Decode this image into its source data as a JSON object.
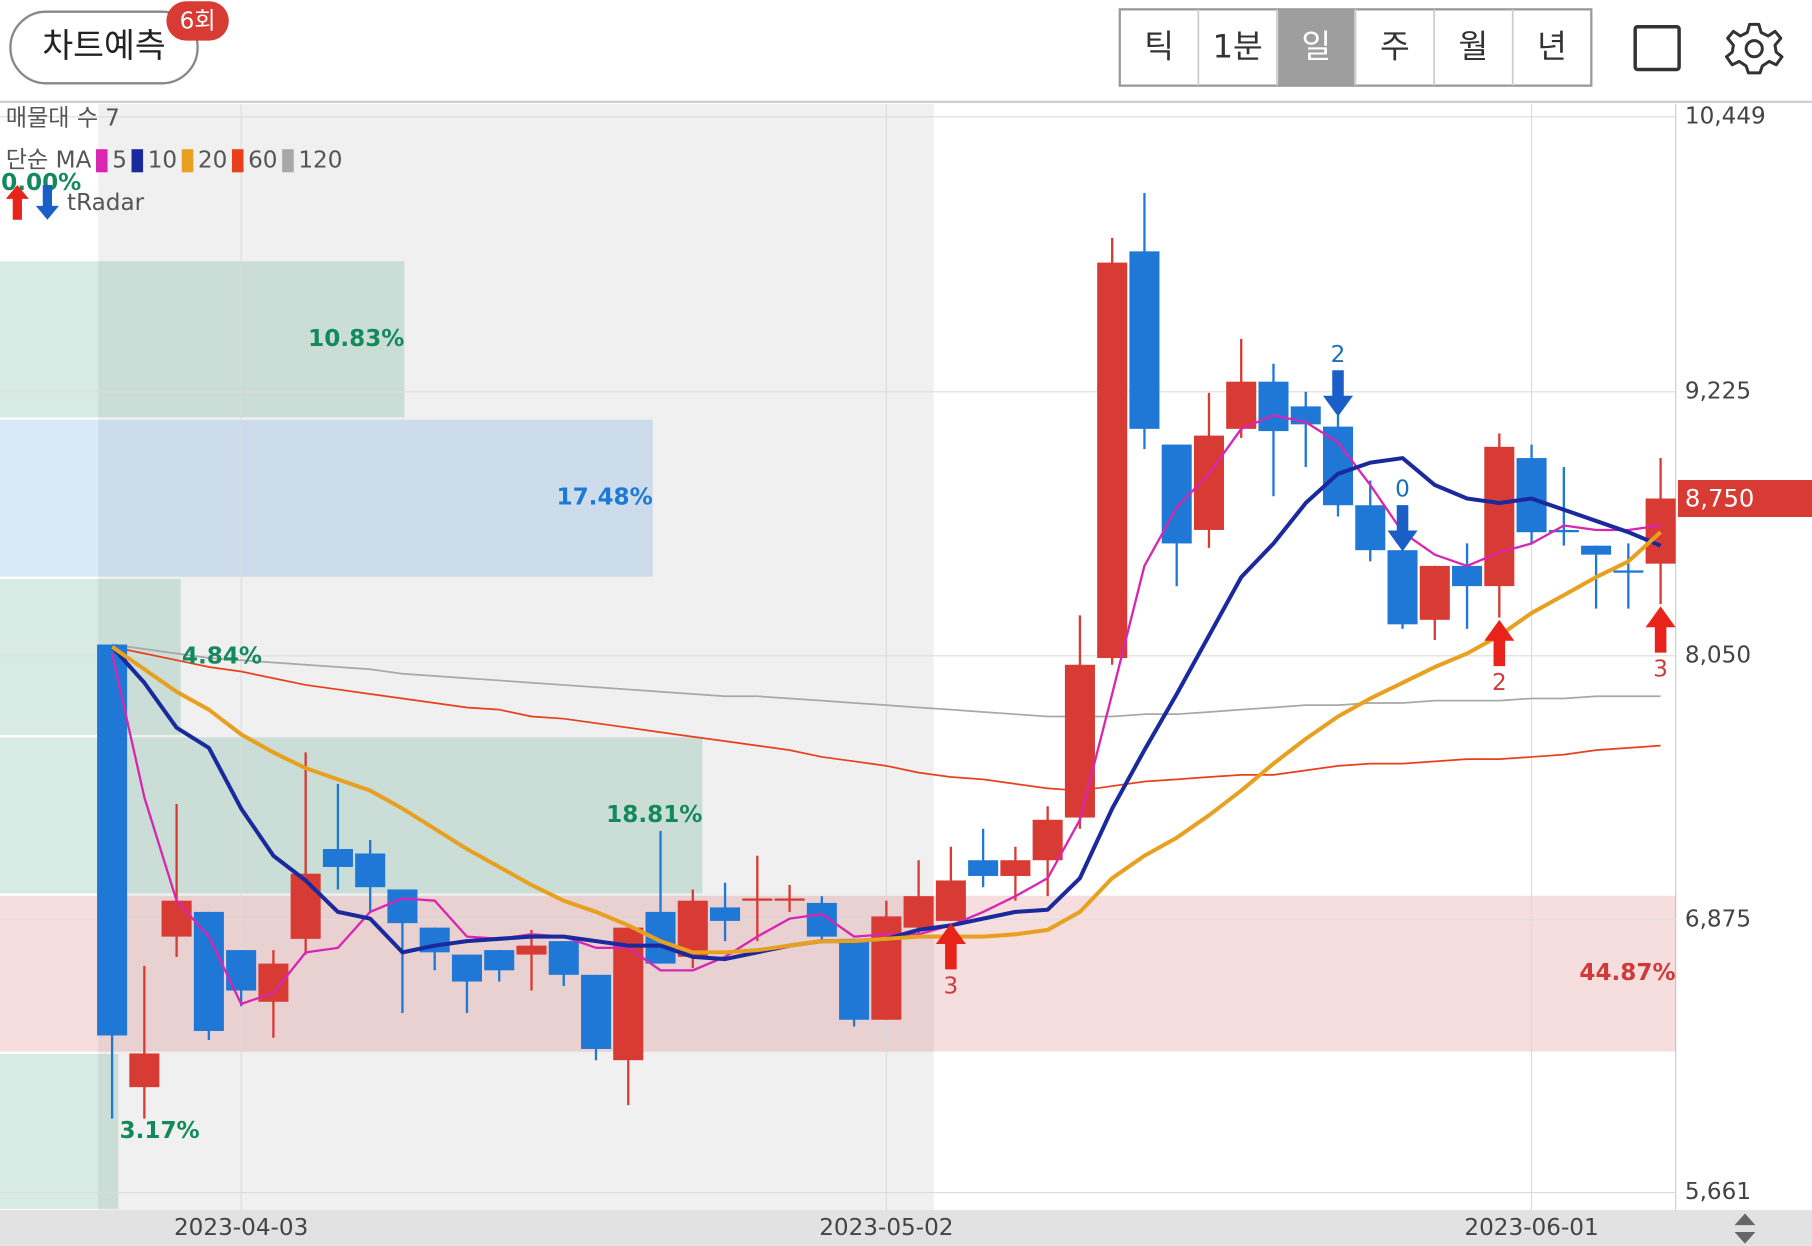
{
  "toolbar": {
    "predict_button": "차트예측",
    "badge": "6회",
    "periods": [
      "틱",
      "1분",
      "일",
      "주",
      "월",
      "년"
    ],
    "selected_period": "일"
  },
  "chart_data": {
    "type": "candlestick",
    "categories": [
      null,
      null,
      null,
      null,
      "2023-04-03",
      null,
      null,
      null,
      null,
      null,
      null,
      null,
      null,
      null,
      null,
      null,
      null,
      null,
      null,
      null,
      null,
      null,
      null,
      null,
      "2023-05-02",
      null,
      null,
      null,
      null,
      null,
      null,
      null,
      null,
      null,
      null,
      null,
      null,
      null,
      null,
      null,
      null,
      null,
      null,
      null,
      "2023-06-01",
      null,
      null,
      null,
      null
    ],
    "open": [
      8100,
      6130,
      6800,
      6910,
      6740,
      6510,
      6790,
      7190,
      7170,
      7010,
      6840,
      6720,
      6740,
      6720,
      6780,
      6630,
      6250,
      6910,
      6710,
      6930,
      6960,
      6960,
      6950,
      6790,
      6430,
      6840,
      6870,
      7140,
      7070,
      7140,
      7330,
      8040,
      9850,
      8990,
      8610,
      9060,
      9270,
      9160,
      9070,
      8720,
      8520,
      8210,
      8450,
      8360,
      8930,
      8610,
      8540,
      8430,
      8460
    ],
    "high": [
      8100,
      6670,
      7390,
      6910,
      6740,
      6740,
      7620,
      7480,
      7230,
      7010,
      6840,
      6720,
      6740,
      6830,
      6780,
      6630,
      6840,
      7270,
      7010,
      7040,
      7160,
      7030,
      6980,
      6790,
      6960,
      7140,
      7200,
      7280,
      7200,
      7380,
      8230,
      9910,
      10110,
      8990,
      9220,
      9460,
      9350,
      9225,
      9120,
      8830,
      8520,
      8450,
      8550,
      9040,
      8990,
      8890,
      8540,
      8550,
      8930
    ],
    "low": [
      5990,
      5990,
      6710,
      6340,
      6490,
      6350,
      6720,
      7010,
      6910,
      6460,
      6650,
      6460,
      6600,
      6560,
      6580,
      6250,
      6050,
      6680,
      6660,
      6780,
      6780,
      6910,
      6780,
      6400,
      6430,
      6800,
      6870,
      7020,
      6960,
      6980,
      7280,
      8010,
      8970,
      8360,
      8530,
      9020,
      8760,
      8890,
      8670,
      8470,
      8170,
      8120,
      8170,
      8220,
      8550,
      8540,
      8260,
      8260,
      8280
    ],
    "close": [
      6360,
      6280,
      6960,
      6380,
      6560,
      6680,
      7080,
      7110,
      7020,
      6860,
      6730,
      6600,
      6650,
      6760,
      6630,
      6300,
      6840,
      6680,
      6960,
      6870,
      6970,
      6970,
      6800,
      6430,
      6890,
      6980,
      7050,
      7070,
      7140,
      7320,
      8010,
      9800,
      9060,
      8550,
      9030,
      9270,
      9050,
      9080,
      8720,
      8520,
      8190,
      8450,
      8360,
      8980,
      8600,
      8600,
      8500,
      8420,
      8750
    ],
    "up_color": "#d83a34",
    "down_color": "#1f77d6",
    "ma_label": "단순 MA",
    "series": [
      {
        "name": "5",
        "color": "#d926b0",
        "width": 2,
        "values": [
          8060,
          7420,
          6960,
          6800,
          6500,
          6550,
          6730,
          6750,
          6910,
          6970,
          6960,
          6800,
          6790,
          6810,
          6800,
          6750,
          6750,
          6650,
          6650,
          6710,
          6800,
          6880,
          6900,
          6800,
          6810,
          6810,
          6850,
          6910,
          6980,
          7060,
          7320,
          7880,
          8450,
          8710,
          8860,
          9060,
          9120,
          9090,
          9000,
          8810,
          8600,
          8500,
          8450,
          8510,
          8550,
          8630,
          8610,
          8610,
          8630
        ]
      },
      {
        "name": "10",
        "color": "#1a2a9c",
        "width": 3.5,
        "values": [
          8090,
          7930,
          7730,
          7640,
          7370,
          7160,
          7050,
          6910,
          6880,
          6730,
          6760,
          6780,
          6790,
          6800,
          6800,
          6780,
          6760,
          6760,
          6710,
          6700,
          6730,
          6760,
          6780,
          6780,
          6790,
          6830,
          6850,
          6880,
          6910,
          6920,
          7060,
          7370,
          7630,
          7880,
          8140,
          8400,
          8550,
          8730,
          8860,
          8910,
          8930,
          8810,
          8750,
          8730,
          8750,
          8700,
          8650,
          8600,
          8540
        ]
      },
      {
        "name": "20",
        "color": "#e8a020",
        "width": 3.5,
        "values": [
          8090,
          7990,
          7890,
          7810,
          7700,
          7620,
          7550,
          7500,
          7450,
          7370,
          7280,
          7190,
          7110,
          7030,
          6960,
          6910,
          6850,
          6780,
          6730,
          6730,
          6740,
          6760,
          6780,
          6780,
          6790,
          6800,
          6800,
          6800,
          6810,
          6830,
          6910,
          7060,
          7160,
          7240,
          7340,
          7450,
          7570,
          7680,
          7780,
          7860,
          7930,
          8000,
          8060,
          8140,
          8240,
          8320,
          8400,
          8470,
          8600
        ]
      },
      {
        "name": "60",
        "color": "#e8401a",
        "width": 1.5,
        "values": [
          8090,
          8060,
          8030,
          8000,
          7980,
          7950,
          7920,
          7900,
          7880,
          7860,
          7840,
          7820,
          7810,
          7780,
          7770,
          7750,
          7730,
          7710,
          7690,
          7670,
          7650,
          7630,
          7600,
          7580,
          7560,
          7530,
          7510,
          7500,
          7480,
          7460,
          7450,
          7470,
          7490,
          7500,
          7510,
          7520,
          7520,
          7540,
          7560,
          7570,
          7570,
          7580,
          7590,
          7590,
          7600,
          7610,
          7630,
          7640,
          7650
        ]
      },
      {
        "name": "120",
        "color": "#a8a8a8",
        "width": 1.5,
        "values": [
          8100,
          8080,
          8060,
          8040,
          8030,
          8020,
          8010,
          8000,
          7990,
          7970,
          7960,
          7950,
          7940,
          7930,
          7920,
          7910,
          7900,
          7890,
          7880,
          7870,
          7870,
          7860,
          7850,
          7840,
          7830,
          7820,
          7810,
          7800,
          7790,
          7780,
          7780,
          7780,
          7790,
          7790,
          7800,
          7810,
          7820,
          7830,
          7830,
          7840,
          7840,
          7850,
          7850,
          7850,
          7860,
          7860,
          7870,
          7870,
          7870
        ]
      }
    ],
    "volume_profile": {
      "title": "매물대 수",
      "count": 7,
      "bins": [
        5583,
        6283,
        6987,
        7692,
        8397,
        9106,
        9811,
        10495
      ],
      "values": [
        3.17,
        44.87,
        18.81,
        4.84,
        17.48,
        10.83,
        0.0
      ],
      "value_labels": [
        "3.17%",
        "44.87%",
        "18.81%",
        "4.84%",
        "17.48%",
        "10.83%",
        "0.00%"
      ],
      "colors": [
        "#148a5c",
        "#d03a3a",
        "#148a5c",
        "#148a5c",
        "#1c7ad6",
        "#148a5c",
        "#148a5c"
      ]
    },
    "signals": {
      "label": "tRadar",
      "buy_color": "#e8231a",
      "sell_color": "#1a5fc8",
      "buy": [
        null,
        null,
        null,
        null,
        null,
        null,
        null,
        null,
        null,
        null,
        null,
        null,
        null,
        null,
        null,
        null,
        null,
        null,
        null,
        null,
        null,
        null,
        null,
        null,
        null,
        null,
        3,
        null,
        null,
        null,
        null,
        null,
        null,
        null,
        null,
        null,
        null,
        null,
        null,
        null,
        null,
        null,
        null,
        2,
        null,
        null,
        null,
        null,
        3
      ],
      "sell": [
        null,
        null,
        null,
        null,
        null,
        null,
        null,
        null,
        null,
        null,
        null,
        null,
        null,
        null,
        null,
        null,
        null,
        null,
        null,
        null,
        null,
        null,
        null,
        null,
        null,
        null,
        null,
        null,
        null,
        null,
        null,
        null,
        null,
        null,
        null,
        null,
        null,
        null,
        2,
        null,
        0,
        null,
        null,
        null,
        null,
        null,
        null,
        null,
        null
      ]
    },
    "last_price": {
      "value": 8750,
      "label": "8,750"
    },
    "ylim": [
      5583,
      10495
    ],
    "yticks": [
      {
        "value": 5661,
        "label": "5,661"
      },
      {
        "value": 6875,
        "label": "6,875"
      },
      {
        "value": 8050,
        "label": "8,050"
      },
      {
        "value": 9225,
        "label": "9,225"
      },
      {
        "value": 10449,
        "label": "10,449"
      }
    ],
    "grid": true
  }
}
